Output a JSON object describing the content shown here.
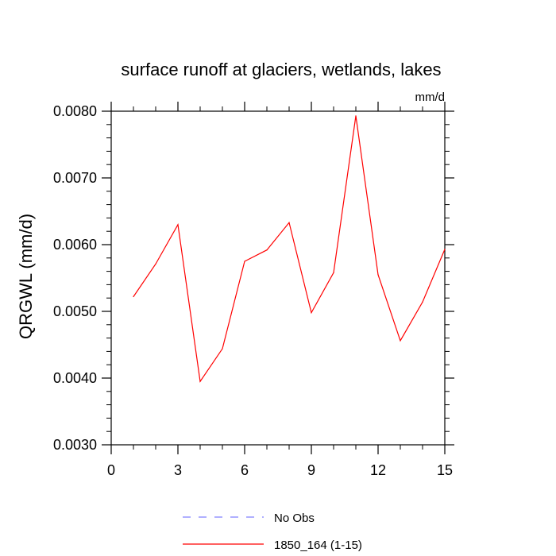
{
  "chart_data": {
    "type": "line",
    "title": "surface runoff at glaciers, wetlands, lakes",
    "units": "mm/d",
    "ylabel": "QRGWL  (mm/d)",
    "xlabel": "",
    "xlim": [
      0,
      15
    ],
    "ylim": [
      0.003,
      0.008
    ],
    "xticks": [
      0,
      3,
      6,
      9,
      12,
      15
    ],
    "xtick_labels": [
      "0",
      "3",
      "6",
      "9",
      "12",
      "15"
    ],
    "yticks": [
      0.003,
      0.004,
      0.005,
      0.006,
      0.007,
      0.008
    ],
    "ytick_labels": [
      "0.0030",
      "0.0040",
      "0.0050",
      "0.0060",
      "0.0070",
      "0.0080"
    ],
    "grid": false,
    "legend_position": "bottom-center",
    "series": [
      {
        "name": "1850_164 (1-15)",
        "color": "#ff0000",
        "style": "solid",
        "x": [
          1,
          2,
          3,
          4,
          5,
          6,
          7,
          8,
          9,
          10,
          11,
          12,
          13,
          14,
          15
        ],
        "y": [
          0.00522,
          0.00571,
          0.0063,
          0.00395,
          0.00444,
          0.00575,
          0.00592,
          0.00633,
          0.00498,
          0.00558,
          0.00793,
          0.00555,
          0.00456,
          0.00514,
          0.00593
        ]
      }
    ],
    "legend": [
      {
        "label": "No Obs",
        "color": "#8080ff",
        "style": "dashed"
      },
      {
        "label": "1850_164 (1-15)",
        "color": "#ff0000",
        "style": "solid"
      }
    ]
  }
}
